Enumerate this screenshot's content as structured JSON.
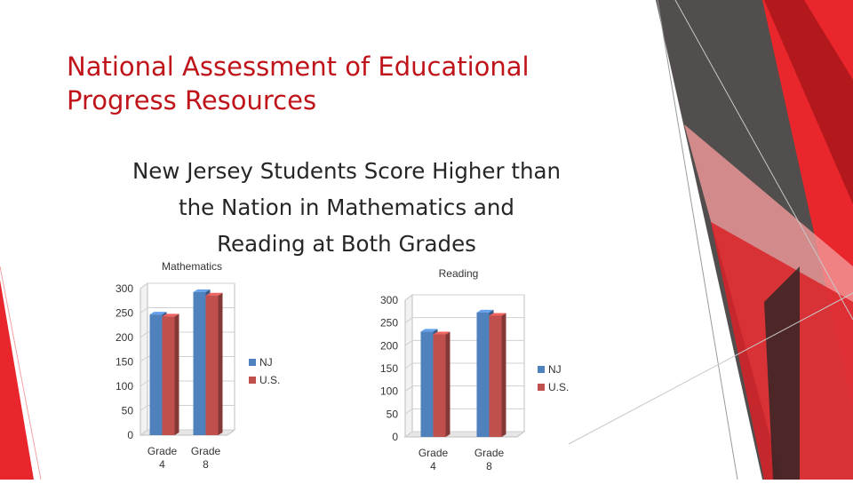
{
  "slide": {
    "title_lines": [
      "National Assessment of Educational",
      "Progress Resources"
    ],
    "headline_lines": [
      "New Jersey Students Score Higher than",
      "the Nation in Mathematics and",
      "Reading at Both Grades"
    ]
  },
  "theme": {
    "title_color": "#c0141b",
    "accent_red": "#e8262b",
    "nj_color": "#4f81bd",
    "us_color": "#c0504d"
  },
  "chart_data": [
    {
      "type": "bar",
      "title": "Mathematics",
      "categories": [
        [
          "Grade",
          "4"
        ],
        [
          "Grade",
          "8"
        ]
      ],
      "series": [
        {
          "name": "NJ",
          "values": [
            247,
            293
          ]
        },
        {
          "name": "U.S.",
          "values": [
            243,
            286
          ]
        }
      ],
      "ylim": [
        0,
        300
      ],
      "yticks": [
        "300",
        "250",
        "200",
        "150",
        "100",
        "50",
        "0"
      ],
      "grid": true,
      "legend": "right"
    },
    {
      "type": "bar",
      "title": "Reading",
      "categories": [
        [
          "Grade",
          "4"
        ],
        [
          "Grade",
          "8"
        ]
      ],
      "series": [
        {
          "name": "NJ",
          "values": [
            231,
            273
          ]
        },
        {
          "name": "U.S.",
          "values": [
            225,
            266
          ]
        }
      ],
      "ylim": [
        0,
        300
      ],
      "yticks": [
        "300",
        "250",
        "200",
        "150",
        "100",
        "50",
        "0"
      ],
      "grid": true,
      "legend": "right"
    }
  ]
}
